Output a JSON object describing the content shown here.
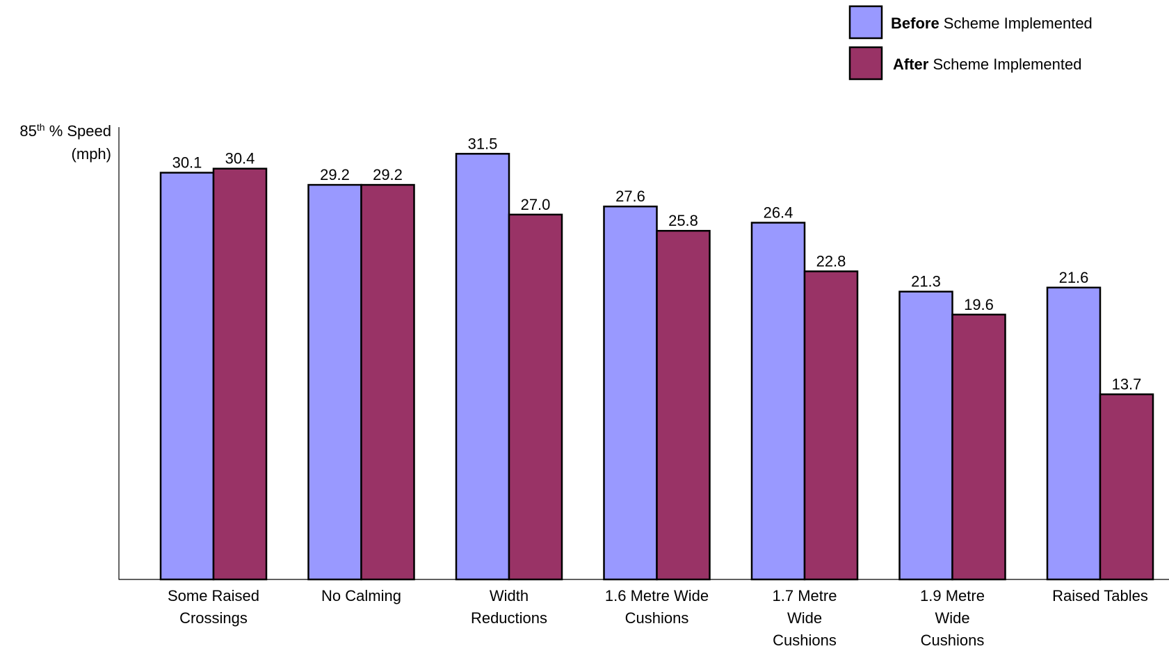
{
  "chart_data": {
    "type": "bar",
    "title": "",
    "ylabel": {
      "line1_main": "85",
      "line1_sup": "th",
      "line1_rest": " % Speed",
      "line2": "(mph)"
    },
    "xlabel": "",
    "ylim": [
      0,
      35
    ],
    "grid": false,
    "legend_position": "top-right",
    "categories": [
      [
        "Some Raised",
        "Crossings"
      ],
      [
        "No Calming"
      ],
      [
        "Width",
        "Reductions"
      ],
      [
        "1.6 Metre Wide",
        "Cushions"
      ],
      [
        "1.7 Metre",
        "Wide",
        "Cushions"
      ],
      [
        "1.9 Metre",
        "Wide",
        "Cushions"
      ],
      [
        "Raised Tables"
      ]
    ],
    "series": [
      {
        "name_bold": "Before",
        "name_rest": " Scheme Implemented",
        "color": "#9999ff",
        "values": [
          30.1,
          29.2,
          31.5,
          27.6,
          26.4,
          21.3,
          21.6
        ],
        "labels": [
          "30.1",
          "29.2",
          "31.5",
          "27.6",
          "26.4",
          "21.3",
          "21.6"
        ]
      },
      {
        "name_bold": "After",
        "name_rest": " Scheme Implemented",
        "color": "#993366",
        "values": [
          30.4,
          29.2,
          27.0,
          25.8,
          22.8,
          19.6,
          13.7
        ],
        "labels": [
          "30.4",
          "29.2",
          "27.0",
          "25.8",
          "22.8",
          "19.6",
          "13.7"
        ]
      }
    ]
  }
}
